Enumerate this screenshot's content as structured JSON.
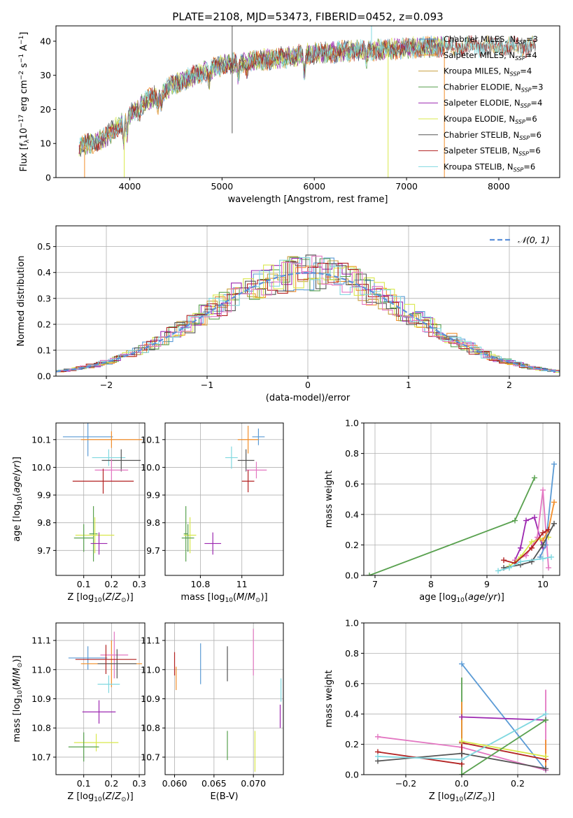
{
  "figure_title": "PLATE=2108, MJD=53473, FIBERID=0452, z=0.093",
  "colors": {
    "Chabrier MILES": "#5b9bd5",
    "Salpeter MILES": "#f28e2b",
    "Kroupa MILES": "#c8a040",
    "Chabrier ELODIE": "#59a14f",
    "Salpeter ELODIE": "#9c27b0",
    "Kroupa ELODIE": "#d9e84b",
    "Chabrier STELIB": "#555555",
    "Salpeter STELIB": "#b22222",
    "Kroupa STELIB": "#80d8e0",
    "pink": "#e377c2",
    "gauss": "#5b8fd9"
  },
  "chart_data": [
    {
      "id": "spectrum",
      "type": "line",
      "xlabel": "wavelength [Angstrom, rest frame]",
      "ylabel": "Flux [f_λ10^-17 erg cm^-2 s^-1 A^-1]",
      "xlim": [
        3200,
        8660
      ],
      "ylim": [
        0,
        44.5
      ],
      "xticks": [
        4000,
        5000,
        6000,
        7000,
        8000
      ],
      "yticks": [
        0,
        10,
        20,
        30,
        40
      ],
      "legend_position": "top-right",
      "series_names": [
        "Chabrier MILES, N_SSP=3",
        "Salpeter MILES, N_SSP=4",
        "Kroupa MILES, N_SSP=4",
        "Chabrier ELODIE, N_SSP=3",
        "Salpeter ELODIE, N_SSP=4",
        "Kroupa ELODIE, N_SSP=6",
        "Chabrier STELIB, N_SSP=6",
        "Salpeter STELIB, N_SSP=6",
        "Kroupa STELIB, N_SSP=6"
      ],
      "continuum": [
        [
          3450,
          9
        ],
        [
          3700,
          11
        ],
        [
          3950,
          17
        ],
        [
          4150,
          22
        ],
        [
          4400,
          26
        ],
        [
          4700,
          30
        ],
        [
          5000,
          33
        ],
        [
          5300,
          34
        ],
        [
          5600,
          35
        ],
        [
          6000,
          36.5
        ],
        [
          6300,
          37
        ],
        [
          6700,
          37.5
        ],
        [
          7000,
          38
        ],
        [
          7400,
          38.5
        ]
      ]
    },
    {
      "id": "residuals",
      "type": "histogram",
      "xlabel": "(data-model)/error",
      "ylabel": "Normed distribution",
      "xlim": [
        -2.5,
        2.5
      ],
      "ylim": [
        0,
        0.58
      ],
      "xticks": [
        -2,
        -1,
        0,
        1,
        2
      ],
      "yticks": [
        0.0,
        0.1,
        0.2,
        0.3,
        0.4,
        0.5
      ],
      "legend": "𝒩(0, 1)",
      "bin_width": 0.1
    },
    {
      "id": "age_vs_Z",
      "type": "errorbar",
      "xlabel": "Z [log10(Z/Z⊙)]",
      "ylabel": "age  [log10(age/yr)]",
      "xlim": [
        0.0,
        0.32
      ],
      "ylim": [
        9.61,
        10.16
      ],
      "xticks": [
        0.1,
        0.2,
        0.3
      ],
      "yticks": [
        9.7,
        9.8,
        9.9,
        10.0,
        10.1
      ],
      "points": [
        {
          "model": "Chabrier MILES",
          "x": 0.115,
          "y": 10.11,
          "xerr": 0.09,
          "yerr": 0.07
        },
        {
          "model": "Salpeter MILES",
          "x": 0.2,
          "y": 10.1,
          "xerr": 0.11,
          "yerr": 0.03
        },
        {
          "model": "Kroupa STELIB",
          "x": 0.19,
          "y": 10.035,
          "xerr": 0.06,
          "yerr": 0.03
        },
        {
          "model": "Chabrier STELIB",
          "x": 0.235,
          "y": 10.025,
          "xerr": 0.07,
          "yerr": 0.04
        },
        {
          "model": "pink",
          "x": 0.2,
          "y": 9.99,
          "xerr": 0.06,
          "yerr": 0.04
        },
        {
          "model": "Salpeter STELIB",
          "x": 0.17,
          "y": 9.95,
          "xerr": 0.11,
          "yerr": 0.045
        },
        {
          "model": "Chabrier ELODIE",
          "x": 0.135,
          "y": 9.76,
          "xerr": 0.015,
          "yerr": 0.1
        },
        {
          "model": "Kroupa ELODIE",
          "x": 0.14,
          "y": 9.755,
          "xerr": 0.07,
          "yerr": 0.065
        },
        {
          "model": "Chabrier ELODIE",
          "x": 0.1,
          "y": 9.745,
          "xerr": 0.035,
          "yerr": 0.05
        },
        {
          "model": "Salpeter ELODIE",
          "x": 0.155,
          "y": 9.725,
          "xerr": 0.03,
          "yerr": 0.04
        }
      ]
    },
    {
      "id": "age_vs_mass",
      "type": "errorbar",
      "xlabel": "mass [log10(M/M⊙)]",
      "ylabel": "",
      "xlim": [
        10.63,
        11.2
      ],
      "ylim": [
        9.61,
        10.16
      ],
      "xticks": [
        10.8,
        11.0
      ],
      "yticks": [
        9.7,
        9.8,
        9.9,
        10.0,
        10.1
      ],
      "points": [
        {
          "model": "Chabrier MILES",
          "x": 11.08,
          "y": 10.11,
          "xerr": 0.03,
          "yerr": 0.03
        },
        {
          "model": "Salpeter MILES",
          "x": 11.03,
          "y": 10.1,
          "xerr": 0.05,
          "yerr": 0.05
        },
        {
          "model": "Kroupa STELIB",
          "x": 10.95,
          "y": 10.035,
          "xerr": 0.03,
          "yerr": 0.04
        },
        {
          "model": "Chabrier STELIB",
          "x": 11.02,
          "y": 10.025,
          "xerr": 0.04,
          "yerr": 0.04
        },
        {
          "model": "pink",
          "x": 11.07,
          "y": 9.99,
          "xerr": 0.05,
          "yerr": 0.03
        },
        {
          "model": "Salpeter STELIB",
          "x": 11.03,
          "y": 9.95,
          "xerr": 0.03,
          "yerr": 0.04
        },
        {
          "model": "Chabrier ELODIE",
          "x": 10.73,
          "y": 9.76,
          "xerr": 0.01,
          "yerr": 0.1
        },
        {
          "model": "Kroupa ELODIE",
          "x": 10.75,
          "y": 9.755,
          "xerr": 0.03,
          "yerr": 0.065
        },
        {
          "model": "Chabrier ELODIE",
          "x": 10.74,
          "y": 9.745,
          "xerr": 0.03,
          "yerr": 0.05
        },
        {
          "model": "Salpeter ELODIE",
          "x": 10.86,
          "y": 9.725,
          "xerr": 0.04,
          "yerr": 0.04
        }
      ]
    },
    {
      "id": "weight_vs_age",
      "type": "line",
      "xlabel": "age  [log10(age/yr)]",
      "ylabel": "mass weight",
      "xlim": [
        6.8,
        10.3
      ],
      "ylim": [
        0.0,
        1.0
      ],
      "xticks": [
        7,
        8,
        9,
        10
      ],
      "yticks": [
        0.0,
        0.2,
        0.4,
        0.6,
        0.8,
        1.0
      ],
      "series": [
        {
          "model": "Chabrier ELODIE",
          "points": [
            [
              6.9,
              0.0
            ],
            [
              9.5,
              0.36
            ],
            [
              9.85,
              0.64
            ]
          ]
        },
        {
          "model": "Salpeter ELODIE",
          "points": [
            [
              9.5,
              0.1
            ],
            [
              9.6,
              0.18
            ],
            [
              9.7,
              0.36
            ],
            [
              9.85,
              0.38
            ],
            [
              10.0,
              0.18
            ]
          ]
        },
        {
          "model": "pink",
          "points": [
            [
              9.5,
              0.1
            ],
            [
              9.7,
              0.13
            ],
            [
              9.9,
              0.25
            ],
            [
              10.0,
              0.56
            ],
            [
              10.1,
              0.05
            ]
          ]
        },
        {
          "model": "Kroupa ELODIE",
          "points": [
            [
              9.4,
              0.06
            ],
            [
              9.6,
              0.12
            ],
            [
              9.8,
              0.22
            ],
            [
              9.95,
              0.24
            ],
            [
              10.1,
              0.25
            ]
          ]
        },
        {
          "model": "Chabrier MILES",
          "points": [
            [
              9.95,
              0.12
            ],
            [
              10.05,
              0.2
            ],
            [
              10.2,
              0.73
            ]
          ]
        },
        {
          "model": "Salpeter MILES",
          "points": [
            [
              10.0,
              0.23
            ],
            [
              10.1,
              0.3
            ],
            [
              10.2,
              0.48
            ]
          ]
        },
        {
          "model": "Salpeter STELIB",
          "points": [
            [
              9.3,
              0.1
            ],
            [
              9.5,
              0.08
            ],
            [
              9.8,
              0.18
            ],
            [
              10.0,
              0.28
            ],
            [
              10.1,
              0.3
            ]
          ]
        },
        {
          "model": "Chabrier STELIB",
          "points": [
            [
              9.3,
              0.05
            ],
            [
              9.6,
              0.07
            ],
            [
              9.8,
              0.09
            ],
            [
              10.0,
              0.2
            ],
            [
              10.2,
              0.34
            ]
          ]
        },
        {
          "model": "Kroupa STELIB",
          "points": [
            [
              9.2,
              0.03
            ],
            [
              9.4,
              0.05
            ],
            [
              9.6,
              0.09
            ],
            [
              10.0,
              0.11
            ],
            [
              10.15,
              0.12
            ]
          ]
        }
      ]
    },
    {
      "id": "mass_vs_Z",
      "type": "errorbar",
      "xlabel": "Z [log10(Z/Z⊙)]",
      "ylabel": "mass [log10(M/M⊙)]",
      "xlim": [
        0.0,
        0.32
      ],
      "ylim": [
        10.64,
        11.16
      ],
      "xticks": [
        0.1,
        0.2,
        0.3
      ],
      "yticks": [
        10.7,
        10.8,
        10.9,
        11.0,
        11.1
      ],
      "points": [
        {
          "model": "Chabrier MILES",
          "x": 0.115,
          "y": 11.04,
          "xerr": 0.07,
          "yerr": 0.04
        },
        {
          "model": "Salpeter MILES",
          "x": 0.2,
          "y": 11.02,
          "xerr": 0.11,
          "yerr": 0.08
        },
        {
          "model": "pink",
          "x": 0.21,
          "y": 11.05,
          "xerr": 0.05,
          "yerr": 0.08
        },
        {
          "model": "Chabrier STELIB",
          "x": 0.22,
          "y": 11.02,
          "xerr": 0.07,
          "yerr": 0.05
        },
        {
          "model": "Salpeter STELIB",
          "x": 0.18,
          "y": 11.035,
          "xerr": 0.11,
          "yerr": 0.05
        },
        {
          "model": "Kroupa STELIB",
          "x": 0.19,
          "y": 10.95,
          "xerr": 0.04,
          "yerr": 0.03
        },
        {
          "model": "Salpeter ELODIE",
          "x": 0.155,
          "y": 10.855,
          "xerr": 0.06,
          "yerr": 0.04
        },
        {
          "model": "Kroupa ELODIE",
          "x": 0.145,
          "y": 10.75,
          "xerr": 0.08,
          "yerr": 0.03
        },
        {
          "model": "Chabrier ELODIE",
          "x": 0.1,
          "y": 10.735,
          "xerr": 0.055,
          "yerr": 0.05
        }
      ]
    },
    {
      "id": "mass_vs_ebv",
      "type": "errorbar",
      "xlabel": "E(B-V)",
      "ylabel": "",
      "xlim": [
        0.0588,
        0.0738
      ],
      "ylim": [
        10.64,
        11.16
      ],
      "xticks": [
        0.06,
        0.065,
        0.07
      ],
      "xtick_labels": [
        "0.060",
        "0.065",
        "0.070"
      ],
      "yticks": [
        10.7,
        10.8,
        10.9,
        11.0,
        11.1
      ],
      "points": [
        {
          "model": "Salpeter STELIB",
          "x": 0.06,
          "y": 11.02,
          "xerr": 0,
          "yerr": 0.04
        },
        {
          "model": "Salpeter MILES",
          "x": 0.0602,
          "y": 10.97,
          "xerr": 0,
          "yerr": 0.04
        },
        {
          "model": "Chabrier MILES",
          "x": 0.0633,
          "y": 11.02,
          "xerr": 0,
          "yerr": 0.07
        },
        {
          "model": "Chabrier STELIB",
          "x": 0.0667,
          "y": 11.02,
          "xerr": 0,
          "yerr": 0.06
        },
        {
          "model": "Chabrier ELODIE",
          "x": 0.0667,
          "y": 10.74,
          "xerr": 0,
          "yerr": 0.05
        },
        {
          "model": "pink",
          "x": 0.07,
          "y": 11.06,
          "xerr": 0,
          "yerr": 0.08
        },
        {
          "model": "Kroupa ELODIE",
          "x": 0.0702,
          "y": 10.72,
          "xerr": 0,
          "yerr": 0.07
        },
        {
          "model": "Kroupa STELIB",
          "x": 0.0735,
          "y": 10.93,
          "xerr": 0,
          "yerr": 0.04
        },
        {
          "model": "Salpeter ELODIE",
          "x": 0.0734,
          "y": 10.84,
          "xerr": 0,
          "yerr": 0.04
        }
      ]
    },
    {
      "id": "weight_vs_Z",
      "type": "line",
      "xlabel": "Z [log10(Z/Z⊙)]",
      "ylabel": "mass weight",
      "xlim": [
        -0.35,
        0.35
      ],
      "ylim": [
        0.0,
        1.0
      ],
      "xticks": [
        -0.2,
        0.0,
        0.2
      ],
      "xtick_labels": [
        "−0.2",
        "0.0",
        "0.2"
      ],
      "yticks": [
        0.0,
        0.2,
        0.4,
        0.6,
        0.8,
        1.0
      ],
      "series": [
        {
          "model": "Chabrier MILES",
          "points": [
            [
              0.0,
              0.73
            ],
            [
              0.3,
              0.03
            ]
          ]
        },
        {
          "model": "Salpeter ELODIE",
          "points": [
            [
              0.0,
              0.38
            ],
            [
              0.3,
              0.36
            ]
          ]
        },
        {
          "model": "pink",
          "points": [
            [
              -0.3,
              0.25
            ],
            [
              0.0,
              0.18
            ],
            [
              0.3,
              0.03
            ]
          ]
        },
        {
          "model": "Salpeter STELIB",
          "points": [
            [
              -0.3,
              0.15
            ],
            [
              0.0,
              0.07
            ],
            [
              0.0,
              0.21
            ],
            [
              0.3,
              0.1
            ]
          ]
        },
        {
          "model": "Chabrier STELIB",
          "points": [
            [
              -0.3,
              0.09
            ],
            [
              0.0,
              0.14
            ],
            [
              0.3,
              0.04
            ]
          ]
        },
        {
          "model": "Kroupa STELIB",
          "points": [
            [
              -0.3,
              0.12
            ],
            [
              0.0,
              0.1
            ],
            [
              0.3,
              0.4
            ]
          ]
        },
        {
          "model": "Kroupa ELODIE",
          "points": [
            [
              0.0,
              0.22
            ],
            [
              0.3,
              0.12
            ]
          ]
        },
        {
          "model": "Chabrier ELODIE",
          "points": [
            [
              0.0,
              0.0
            ],
            [
              0.3,
              0.36
            ]
          ]
        }
      ],
      "verticals": [
        {
          "model": "Chabrier ELODIE",
          "x": 0.0,
          "y": [
            0.0,
            0.64
          ]
        },
        {
          "model": "Salpeter MILES",
          "x": 0.0,
          "y": [
            0.18,
            0.48
          ]
        },
        {
          "model": "pink",
          "x": 0.3,
          "y": [
            0.03,
            0.56
          ]
        },
        {
          "model": "Salpeter MILES",
          "x": 0.3,
          "y": [
            0.05,
            0.23
          ]
        }
      ]
    }
  ]
}
